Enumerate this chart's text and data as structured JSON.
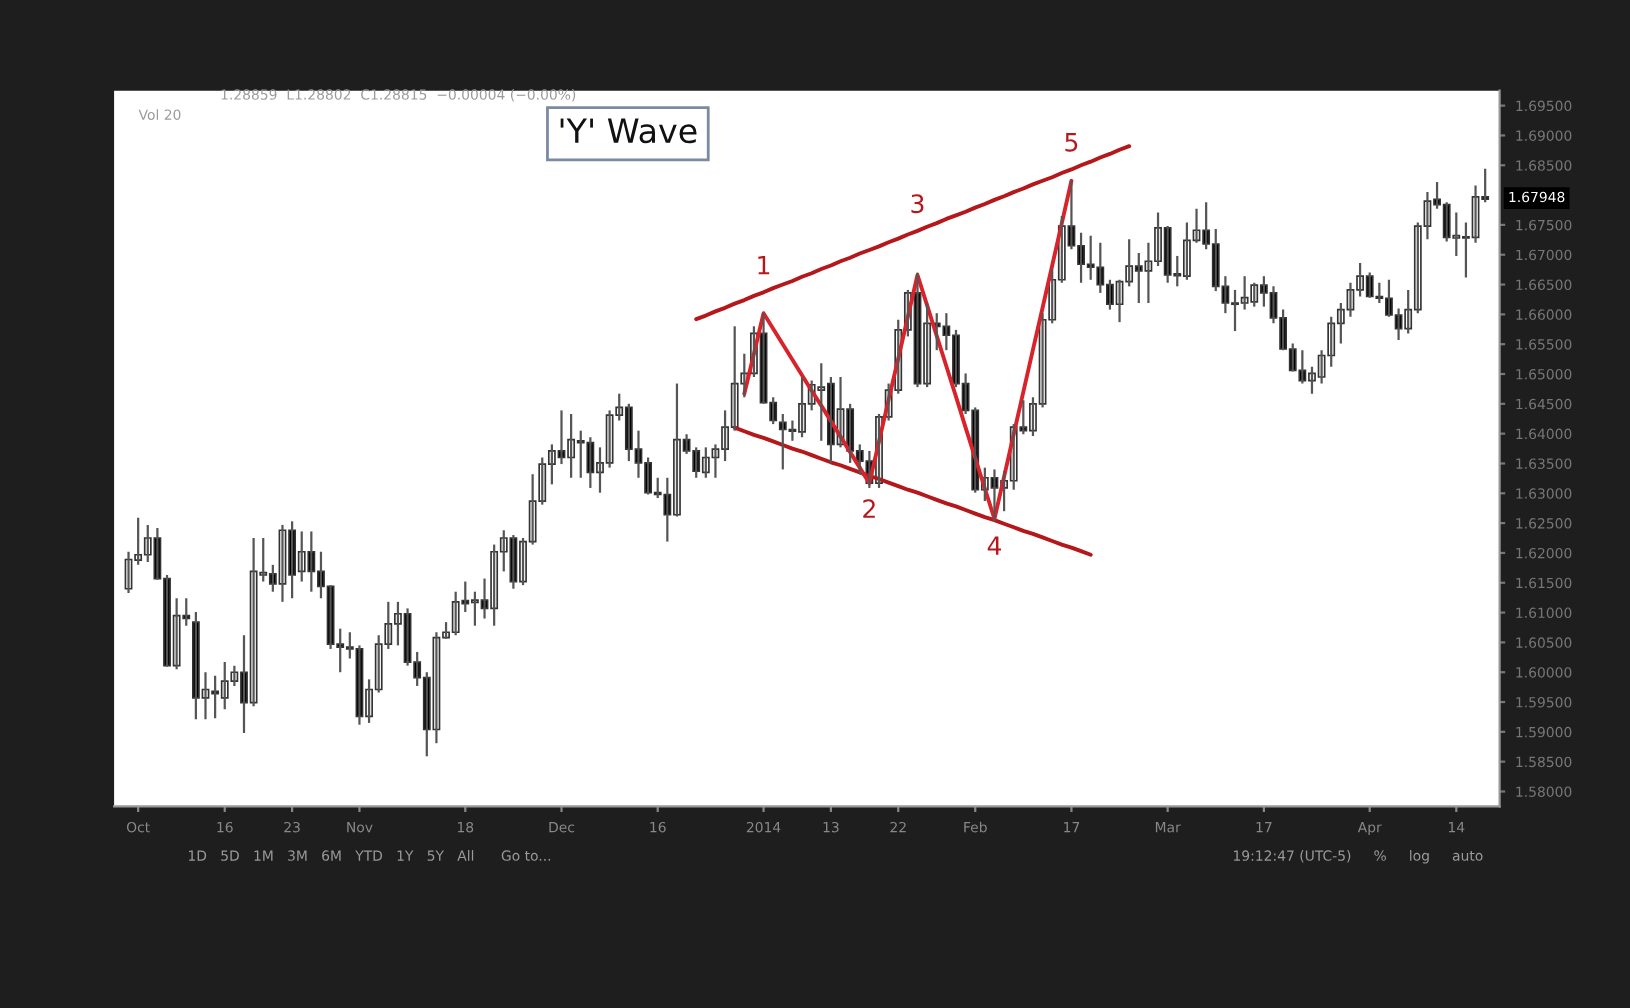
{
  "chart_data": {
    "type": "candlestick",
    "title": "'Y' Wave",
    "categories": [
      null,
      "Oct",
      null,
      null,
      null,
      null,
      null,
      null,
      null,
      null,
      "16",
      null,
      null,
      null,
      null,
      null,
      null,
      "23",
      null,
      null,
      null,
      null,
      null,
      null,
      "Nov",
      null,
      null,
      null,
      null,
      null,
      null,
      null,
      null,
      null,
      null,
      "18",
      null,
      null,
      null,
      null,
      null,
      null,
      null,
      null,
      null,
      "Dec",
      null,
      null,
      null,
      null,
      null,
      null,
      null,
      null,
      null,
      "16",
      null,
      null,
      null,
      null,
      null,
      null,
      null,
      null,
      null,
      null,
      "2014",
      null,
      null,
      null,
      null,
      null,
      null,
      "13",
      null,
      null,
      null,
      null,
      null,
      null,
      "22",
      null,
      null,
      null,
      null,
      null,
      null,
      null,
      "Feb",
      null,
      null,
      null,
      null,
      null,
      null,
      null,
      null,
      null,
      "17",
      null,
      null,
      null,
      null,
      null,
      null,
      null,
      null,
      null,
      "Mar",
      null,
      null,
      null,
      null,
      null,
      null,
      null,
      null,
      null,
      "17",
      null,
      null,
      null,
      null,
      null,
      null,
      null,
      null,
      null,
      null,
      "Apr",
      null,
      null,
      null,
      null,
      null,
      null,
      null,
      null,
      "14",
      null,
      null,
      null
    ],
    "ohlc": [
      [
        1.614,
        1.6202,
        1.6133,
        1.6189
      ],
      [
        1.6188,
        1.6259,
        1.618,
        1.6197
      ],
      [
        1.6197,
        1.6247,
        1.6185,
        1.6225
      ],
      [
        1.6225,
        1.6242,
        1.6155,
        1.6157
      ],
      [
        1.6157,
        1.6163,
        1.6009,
        1.6011
      ],
      [
        1.6011,
        1.6124,
        1.6005,
        1.6095
      ],
      [
        1.6095,
        1.6124,
        1.6078,
        1.609
      ],
      [
        1.6084,
        1.6101,
        1.5921,
        1.5957
      ],
      [
        1.5957,
        1.6,
        1.5921,
        1.5971
      ],
      [
        1.5968,
        1.5994,
        1.5923,
        1.5964
      ],
      [
        1.5957,
        1.6017,
        1.5938,
        1.5985
      ],
      [
        1.5985,
        1.6011,
        1.5977,
        1.6
      ],
      [
        1.6,
        1.6062,
        1.5898,
        1.5949
      ],
      [
        1.5949,
        1.6225,
        1.5943,
        1.6169
      ],
      [
        1.6163,
        1.6225,
        1.6152,
        1.6167
      ],
      [
        1.6165,
        1.618,
        1.6135,
        1.6148
      ],
      [
        1.6148,
        1.6247,
        1.6118,
        1.6238
      ],
      [
        1.6238,
        1.6253,
        1.6124,
        1.6163
      ],
      [
        1.6169,
        1.6236,
        1.6152,
        1.6202
      ],
      [
        1.6202,
        1.6236,
        1.6135,
        1.6169
      ],
      [
        1.6169,
        1.6202,
        1.6124,
        1.6144
      ],
      [
        1.6144,
        1.6146,
        1.6039,
        1.6047
      ],
      [
        1.6047,
        1.6073,
        1.6,
        1.6042
      ],
      [
        1.6042,
        1.6067,
        1.6023,
        1.6039
      ],
      [
        1.6039,
        1.6045,
        1.5912,
        1.5926
      ],
      [
        1.5926,
        1.5988,
        1.5915,
        1.5971
      ],
      [
        1.5971,
        1.6062,
        1.5966,
        1.6047
      ],
      [
        1.6047,
        1.6118,
        1.6039,
        1.6081
      ],
      [
        1.6081,
        1.6118,
        1.6045,
        1.6098
      ],
      [
        1.6098,
        1.6107,
        1.6011,
        1.6017
      ],
      [
        1.6017,
        1.6034,
        1.5977,
        1.5991
      ],
      [
        1.5991,
        1.6,
        1.5859,
        1.5904
      ],
      [
        1.5904,
        1.6067,
        1.5881,
        1.6058
      ],
      [
        1.6058,
        1.6084,
        1.6056,
        1.6067
      ],
      [
        1.6067,
        1.6135,
        1.6062,
        1.6118
      ],
      [
        1.612,
        1.6152,
        1.6101,
        1.6115
      ],
      [
        1.6117,
        1.6135,
        1.6078,
        1.6121
      ],
      [
        1.6121,
        1.6157,
        1.609,
        1.6107
      ],
      [
        1.6107,
        1.6214,
        1.6078,
        1.6202
      ],
      [
        1.6202,
        1.6238,
        1.6169,
        1.6225
      ],
      [
        1.6225,
        1.623,
        1.614,
        1.6152
      ],
      [
        1.6152,
        1.6225,
        1.6146,
        1.6219
      ],
      [
        1.6219,
        1.6332,
        1.6214,
        1.6287
      ],
      [
        1.6287,
        1.636,
        1.6281,
        1.6349
      ],
      [
        1.6349,
        1.6382,
        1.6315,
        1.6371
      ],
      [
        1.6371,
        1.6439,
        1.6349,
        1.636
      ],
      [
        1.636,
        1.6433,
        1.6326,
        1.639
      ],
      [
        1.6388,
        1.6405,
        1.6326,
        1.6385
      ],
      [
        1.6385,
        1.6394,
        1.6309,
        1.6335
      ],
      [
        1.6335,
        1.6377,
        1.6301,
        1.6351
      ],
      [
        1.6351,
        1.6439,
        1.6343,
        1.6431
      ],
      [
        1.6431,
        1.6467,
        1.6422,
        1.6444
      ],
      [
        1.6444,
        1.645,
        1.6354,
        1.6374
      ],
      [
        1.6374,
        1.6405,
        1.6326,
        1.6351
      ],
      [
        1.6351,
        1.636,
        1.6298,
        1.6301
      ],
      [
        1.6301,
        1.6326,
        1.6292,
        1.6298
      ],
      [
        1.6298,
        1.6326,
        1.6219,
        1.6264
      ],
      [
        1.6264,
        1.6484,
        1.6261,
        1.639
      ],
      [
        1.639,
        1.6399,
        1.6366,
        1.6371
      ],
      [
        1.6371,
        1.6377,
        1.6326,
        1.6337
      ],
      [
        1.6335,
        1.6377,
        1.6326,
        1.636
      ],
      [
        1.636,
        1.6382,
        1.6326,
        1.6374
      ],
      [
        1.6374,
        1.6439,
        1.6354,
        1.6411
      ],
      [
        1.6411,
        1.658,
        1.6405,
        1.6484
      ],
      [
        1.6484,
        1.6534,
        1.6461,
        1.6501
      ],
      [
        1.6501,
        1.658,
        1.6495,
        1.6568
      ],
      [
        1.6568,
        1.6602,
        1.645,
        1.6452
      ],
      [
        1.6452,
        1.6461,
        1.6416,
        1.6422
      ],
      [
        1.6419,
        1.6433,
        1.634,
        1.6407
      ],
      [
        1.6407,
        1.6422,
        1.6388,
        1.6404
      ],
      [
        1.6403,
        1.6495,
        1.6394,
        1.645
      ],
      [
        1.645,
        1.6489,
        1.6439,
        1.6482
      ],
      [
        1.6473,
        1.6518,
        1.6388,
        1.6478
      ],
      [
        1.6484,
        1.6495,
        1.6351,
        1.6382
      ],
      [
        1.6382,
        1.6495,
        1.6377,
        1.6441
      ],
      [
        1.6441,
        1.645,
        1.6351,
        1.6371
      ],
      [
        1.6371,
        1.6382,
        1.6332,
        1.6354
      ],
      [
        1.6354,
        1.6371,
        1.6309,
        1.6317
      ],
      [
        1.6317,
        1.6433,
        1.6309,
        1.6428
      ],
      [
        1.6428,
        1.6484,
        1.6422,
        1.6473
      ],
      [
        1.6473,
        1.6591,
        1.6467,
        1.6574
      ],
      [
        1.6574,
        1.6641,
        1.6563,
        1.6636
      ],
      [
        1.6636,
        1.667,
        1.6478,
        1.6484
      ],
      [
        1.6484,
        1.6619,
        1.6478,
        1.6585
      ],
      [
        1.6585,
        1.6602,
        1.654,
        1.658
      ],
      [
        1.658,
        1.6602,
        1.654,
        1.6565
      ],
      [
        1.6565,
        1.6574,
        1.6478,
        1.6484
      ],
      [
        1.6484,
        1.6501,
        1.6433,
        1.6439
      ],
      [
        1.6439,
        1.6444,
        1.6301,
        1.6306
      ],
      [
        1.6306,
        1.6343,
        1.6287,
        1.6326
      ],
      [
        1.6326,
        1.634,
        1.6253,
        1.6309
      ],
      [
        1.6309,
        1.6337,
        1.627,
        1.6321
      ],
      [
        1.6321,
        1.6416,
        1.6306,
        1.6411
      ],
      [
        1.6411,
        1.6456,
        1.6399,
        1.6405
      ],
      [
        1.6405,
        1.6461,
        1.6396,
        1.645
      ],
      [
        1.645,
        1.6602,
        1.6444,
        1.6591
      ],
      [
        1.6591,
        1.6675,
        1.6585,
        1.6658
      ],
      [
        1.6658,
        1.6765,
        1.6653,
        1.6748
      ],
      [
        1.6748,
        1.6824,
        1.6709,
        1.6715
      ],
      [
        1.6715,
        1.6737,
        1.6653,
        1.6684
      ],
      [
        1.6684,
        1.6732,
        1.6658,
        1.6679
      ],
      [
        1.6679,
        1.672,
        1.6636,
        1.665
      ],
      [
        1.665,
        1.6658,
        1.6608,
        1.6617
      ],
      [
        1.6617,
        1.6658,
        1.6587,
        1.6655
      ],
      [
        1.6655,
        1.6726,
        1.6647,
        1.6681
      ],
      [
        1.6681,
        1.6703,
        1.6619,
        1.6673
      ],
      [
        1.6673,
        1.672,
        1.6619,
        1.6689
      ],
      [
        1.6689,
        1.6771,
        1.6681,
        1.6745
      ],
      [
        1.6745,
        1.6748,
        1.6653,
        1.6666
      ],
      [
        1.6668,
        1.6698,
        1.6647,
        1.6665
      ],
      [
        1.6664,
        1.6754,
        1.6658,
        1.6724
      ],
      [
        1.6724,
        1.6777,
        1.672,
        1.6741
      ],
      [
        1.6741,
        1.6788,
        1.6709,
        1.6718
      ],
      [
        1.6718,
        1.6743,
        1.6639,
        1.6647
      ],
      [
        1.6647,
        1.6664,
        1.6602,
        1.6619
      ],
      [
        1.6619,
        1.6641,
        1.6572,
        1.6617
      ],
      [
        1.6619,
        1.6664,
        1.6608,
        1.6628
      ],
      [
        1.6621,
        1.6653,
        1.6613,
        1.6649
      ],
      [
        1.6649,
        1.6664,
        1.6613,
        1.6636
      ],
      [
        1.6636,
        1.6647,
        1.6585,
        1.6594
      ],
      [
        1.6594,
        1.6608,
        1.654,
        1.6542
      ],
      [
        1.6542,
        1.6551,
        1.6504,
        1.6506
      ],
      [
        1.6506,
        1.654,
        1.6484,
        1.6489
      ],
      [
        1.6489,
        1.6512,
        1.6467,
        1.6501
      ],
      [
        1.6495,
        1.654,
        1.6484,
        1.6531
      ],
      [
        1.6531,
        1.6596,
        1.6512,
        1.6585
      ],
      [
        1.6585,
        1.6619,
        1.6551,
        1.6608
      ],
      [
        1.6608,
        1.6653,
        1.6596,
        1.6641
      ],
      [
        1.6641,
        1.6686,
        1.663,
        1.6664
      ],
      [
        1.6664,
        1.667,
        1.6628,
        1.663
      ],
      [
        1.663,
        1.6653,
        1.6619,
        1.6627
      ],
      [
        1.6627,
        1.6658,
        1.6596,
        1.6599
      ],
      [
        1.6599,
        1.661,
        1.6557,
        1.6576
      ],
      [
        1.6576,
        1.6641,
        1.6568,
        1.6608
      ],
      [
        1.6608,
        1.6754,
        1.6602,
        1.6748
      ],
      [
        1.6748,
        1.6805,
        1.6726,
        1.679
      ],
      [
        1.6793,
        1.6822,
        1.6777,
        1.6784
      ],
      [
        1.6784,
        1.6788,
        1.6722,
        1.6729
      ],
      [
        1.6728,
        1.6771,
        1.6698,
        1.6732
      ],
      [
        1.6728,
        1.6754,
        1.6662,
        1.673
      ],
      [
        1.6729,
        1.6816,
        1.672,
        1.6797
      ],
      [
        1.6797,
        1.6844,
        1.6788,
        1.6793
      ]
    ],
    "series": [
      {
        "type": "line",
        "color": "#b5181b",
        "values": [
          null,
          null,
          null,
          null,
          null,
          null,
          null,
          null,
          null,
          null,
          null,
          null,
          null,
          null,
          null,
          null,
          null,
          null,
          null,
          null,
          null,
          null,
          null,
          null,
          null,
          null,
          null,
          null,
          null,
          null,
          null,
          null,
          null,
          null,
          null,
          null,
          null,
          null,
          null,
          null,
          null,
          null,
          null,
          null,
          null,
          null,
          null,
          null,
          null,
          null,
          null,
          null,
          null,
          null,
          null,
          null,
          null,
          null,
          null,
          1.6592,
          1.6598,
          1.6605,
          1.6611,
          1.6618,
          1.6624,
          1.6631,
          1.6637,
          1.6644,
          1.665,
          1.6656,
          1.6663,
          1.6669,
          1.6676,
          1.6682,
          1.6689,
          1.6695,
          1.6702,
          1.6708,
          1.6714,
          1.6721,
          1.6727,
          1.6734,
          1.674,
          1.6747,
          1.6753,
          1.676,
          1.6766,
          1.6772,
          1.6779,
          1.6785,
          1.6792,
          1.6798,
          1.6805,
          1.6811,
          1.6818,
          1.6824,
          1.683,
          1.6837,
          1.6843,
          1.685,
          1.6856,
          1.6863,
          1.6869,
          1.6876,
          1.6882,
          null,
          null,
          null,
          null,
          null,
          null,
          null,
          null,
          null,
          null,
          null,
          null,
          null,
          null,
          null,
          null,
          null,
          null,
          null,
          null,
          null,
          null,
          null,
          null,
          null,
          null,
          null,
          null,
          null,
          null,
          null,
          null,
          null,
          null,
          null,
          null,
          null
        ]
      },
      {
        "type": "line",
        "color": "#b5181b",
        "values": [
          null,
          null,
          null,
          null,
          null,
          null,
          null,
          null,
          null,
          null,
          null,
          null,
          null,
          null,
          null,
          null,
          null,
          null,
          null,
          null,
          null,
          null,
          null,
          null,
          null,
          null,
          null,
          null,
          null,
          null,
          null,
          null,
          null,
          null,
          null,
          null,
          null,
          null,
          null,
          null,
          null,
          null,
          null,
          null,
          null,
          null,
          null,
          null,
          null,
          null,
          null,
          null,
          null,
          null,
          null,
          null,
          null,
          null,
          null,
          null,
          null,
          null,
          null,
          1.641,
          1.6404,
          1.6398,
          1.6393,
          1.6387,
          1.6381,
          1.6375,
          1.637,
          1.6364,
          1.6358,
          1.6352,
          1.6347,
          1.6341,
          1.6335,
          1.6329,
          1.6324,
          1.6318,
          1.6312,
          1.6306,
          1.6301,
          1.6295,
          1.6289,
          1.6283,
          1.6278,
          1.6272,
          1.6266,
          1.626,
          1.6255,
          1.6249,
          1.6243,
          1.6237,
          1.6232,
          1.6226,
          1.622,
          1.6214,
          1.6209,
          1.6203,
          1.6197,
          null,
          null,
          null,
          null,
          null,
          null,
          null,
          null,
          null,
          null,
          null,
          null,
          null,
          null,
          null,
          null,
          null,
          null,
          null,
          null,
          null,
          null,
          null,
          null,
          null,
          null,
          null,
          null,
          null,
          null,
          null,
          null,
          null,
          null,
          null,
          null,
          null,
          null,
          null,
          null,
          null
        ]
      },
      {
        "type": "line",
        "color": "#d8232a",
        "values": [
          null,
          null,
          null,
          null,
          null,
          null,
          null,
          null,
          null,
          null,
          null,
          null,
          null,
          null,
          null,
          null,
          null,
          null,
          null,
          null,
          null,
          null,
          null,
          null,
          null,
          null,
          null,
          null,
          null,
          null,
          null,
          null,
          null,
          null,
          null,
          null,
          null,
          null,
          null,
          null,
          null,
          null,
          null,
          null,
          null,
          null,
          null,
          null,
          null,
          null,
          null,
          null,
          null,
          null,
          null,
          null,
          null,
          null,
          null,
          null,
          null,
          null,
          null,
          null,
          1.6467,
          1.6534,
          1.6602,
          1.6576,
          1.655,
          1.6524,
          1.6498,
          1.6472,
          1.6447,
          1.6421,
          1.6395,
          1.6369,
          1.6343,
          1.6317,
          1.6387,
          1.6457,
          1.6526,
          1.6596,
          1.6666,
          1.6615,
          1.6564,
          1.6513,
          1.6462,
          1.641,
          1.6359,
          1.6308,
          1.6257,
          1.6328,
          1.6399,
          1.647,
          1.6541,
          1.6611,
          1.6682,
          1.6753,
          1.6824,
          null,
          null,
          null,
          null,
          null,
          null,
          null,
          null,
          null,
          null,
          null,
          null,
          null,
          null,
          null,
          null,
          null,
          null,
          null,
          null,
          null,
          null,
          null,
          null,
          null,
          null,
          null,
          null,
          null,
          null,
          null,
          null,
          null,
          null,
          null,
          null,
          null,
          null,
          null,
          null,
          null,
          null,
          null
        ]
      }
    ],
    "annotations": [
      "1",
      "2",
      "3",
      "4",
      "5",
      {
        "text": "1.67948",
        "y": 1.67948
      },
      "1.28859  L1.28802  C1.28815  −0.00004 (−0.00%)",
      "Vol 20",
      "1D   5D   1M   3M   6M   YTD   1Y   5Y   All      Go to...",
      "19:12:47 (UTC-5)     %     log     auto"
    ],
    "ylim": [
      1.5775,
      1.6975
    ],
    "yticks": [
      {
        "value": 1.58,
        "label": "1.58000"
      },
      {
        "value": 1.585,
        "label": "1.58500"
      },
      {
        "value": 1.59,
        "label": "1.59000"
      },
      {
        "value": 1.595,
        "label": "1.59500"
      },
      {
        "value": 1.6,
        "label": "1.60000"
      },
      {
        "value": 1.605,
        "label": "1.60500"
      },
      {
        "value": 1.61,
        "label": "1.61000"
      },
      {
        "value": 1.615,
        "label": "1.61500"
      },
      {
        "value": 1.62,
        "label": "1.62000"
      },
      {
        "value": 1.625,
        "label": "1.62500"
      },
      {
        "value": 1.63,
        "label": "1.63000"
      },
      {
        "value": 1.635,
        "label": "1.63500"
      },
      {
        "value": 1.64,
        "label": "1.64000"
      },
      {
        "value": 1.645,
        "label": "1.64500"
      },
      {
        "value": 1.65,
        "label": "1.65000"
      },
      {
        "value": 1.655,
        "label": "1.65500"
      },
      {
        "value": 1.66,
        "label": "1.66000"
      },
      {
        "value": 1.665,
        "label": "1.66500"
      },
      {
        "value": 1.67,
        "label": "1.67000"
      },
      {
        "value": 1.675,
        "label": "1.67500"
      },
      {
        "value": 1.685,
        "label": "1.68500"
      },
      {
        "value": 1.69,
        "label": "1.69000"
      },
      {
        "value": 1.695,
        "label": "1.69500"
      }
    ],
    "grid": false
  }
}
